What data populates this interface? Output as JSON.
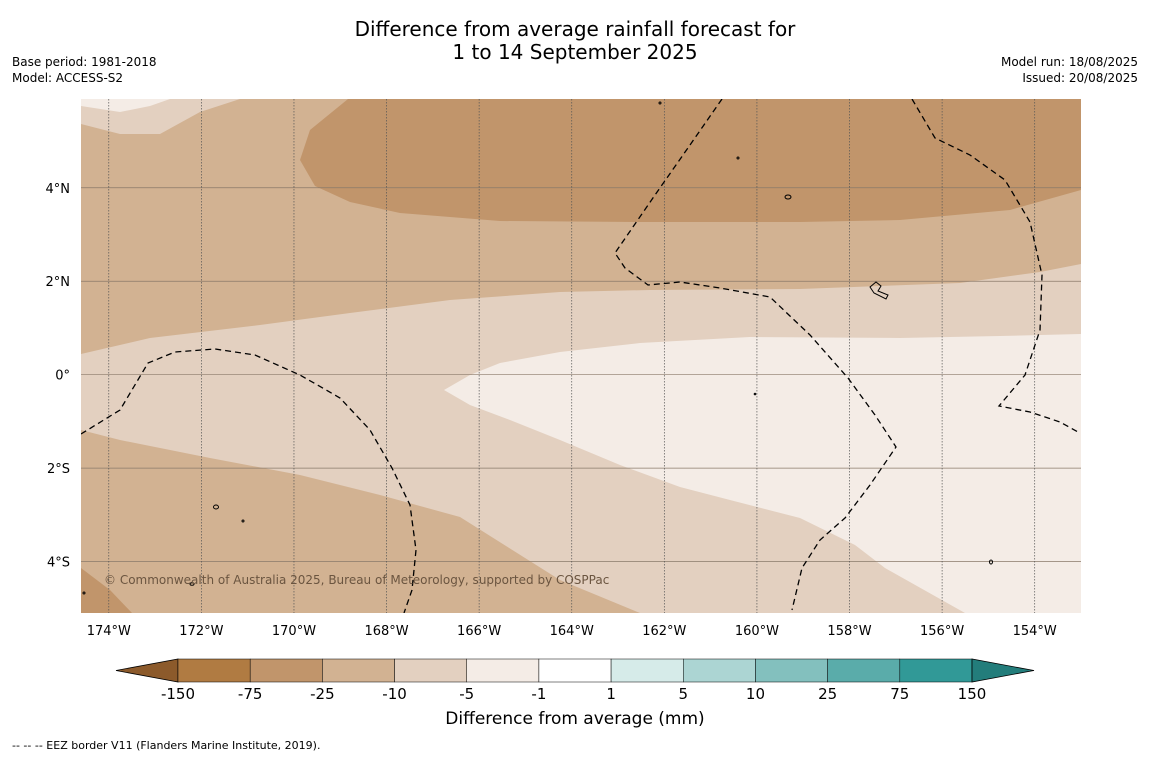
{
  "header": {
    "title_line1": "Difference from average rainfall forecast for",
    "title_line2": "1 to 14 September 2025",
    "base_period": "Base period: 1981-2018",
    "model": "Model: ACCESS-S2",
    "model_run": "Model run: 18/08/2025",
    "issued": "Issued: 20/08/2025"
  },
  "map": {
    "lat_labels": [
      "4°N",
      "2°N",
      "0°",
      "2°S",
      "4°S"
    ],
    "lat_values": [
      4,
      2,
      0,
      -2,
      -4
    ],
    "lon_labels": [
      "174°W",
      "172°W",
      "170°W",
      "168°W",
      "166°W",
      "164°W",
      "162°W",
      "160°W",
      "158°W",
      "156°W",
      "154°W"
    ],
    "lon_values": [
      -174,
      -172,
      -170,
      -168,
      -166,
      -164,
      -162,
      -160,
      -158,
      -156,
      -154
    ],
    "lon_range": [
      -174.6,
      -153.0
    ],
    "lat_range": [
      -5.1,
      5.9
    ],
    "copyright": "© Commonwealth of Australia 2025, Bureau of Meteorology, supported by COSPPac"
  },
  "colorbar": {
    "title": "Difference from average (mm)",
    "tick_labels": [
      "-150",
      "-75",
      "-25",
      "-10",
      "-5",
      "-1",
      "1",
      "5",
      "10",
      "25",
      "75",
      "150"
    ],
    "colors": [
      "#8c5a2b",
      "#b07b42",
      "#c1956b",
      "#d2b292",
      "#e3d0c0",
      "#f4ece6",
      "#ffffff",
      "#d6ebe9",
      "#acd5d3",
      "#83c0be",
      "#5aacaa",
      "#319997",
      "#237d7b"
    ]
  },
  "footer": {
    "eez_note": "--  --  -- EEZ border V11 (Flanders Marine Institute, 2019)."
  }
}
